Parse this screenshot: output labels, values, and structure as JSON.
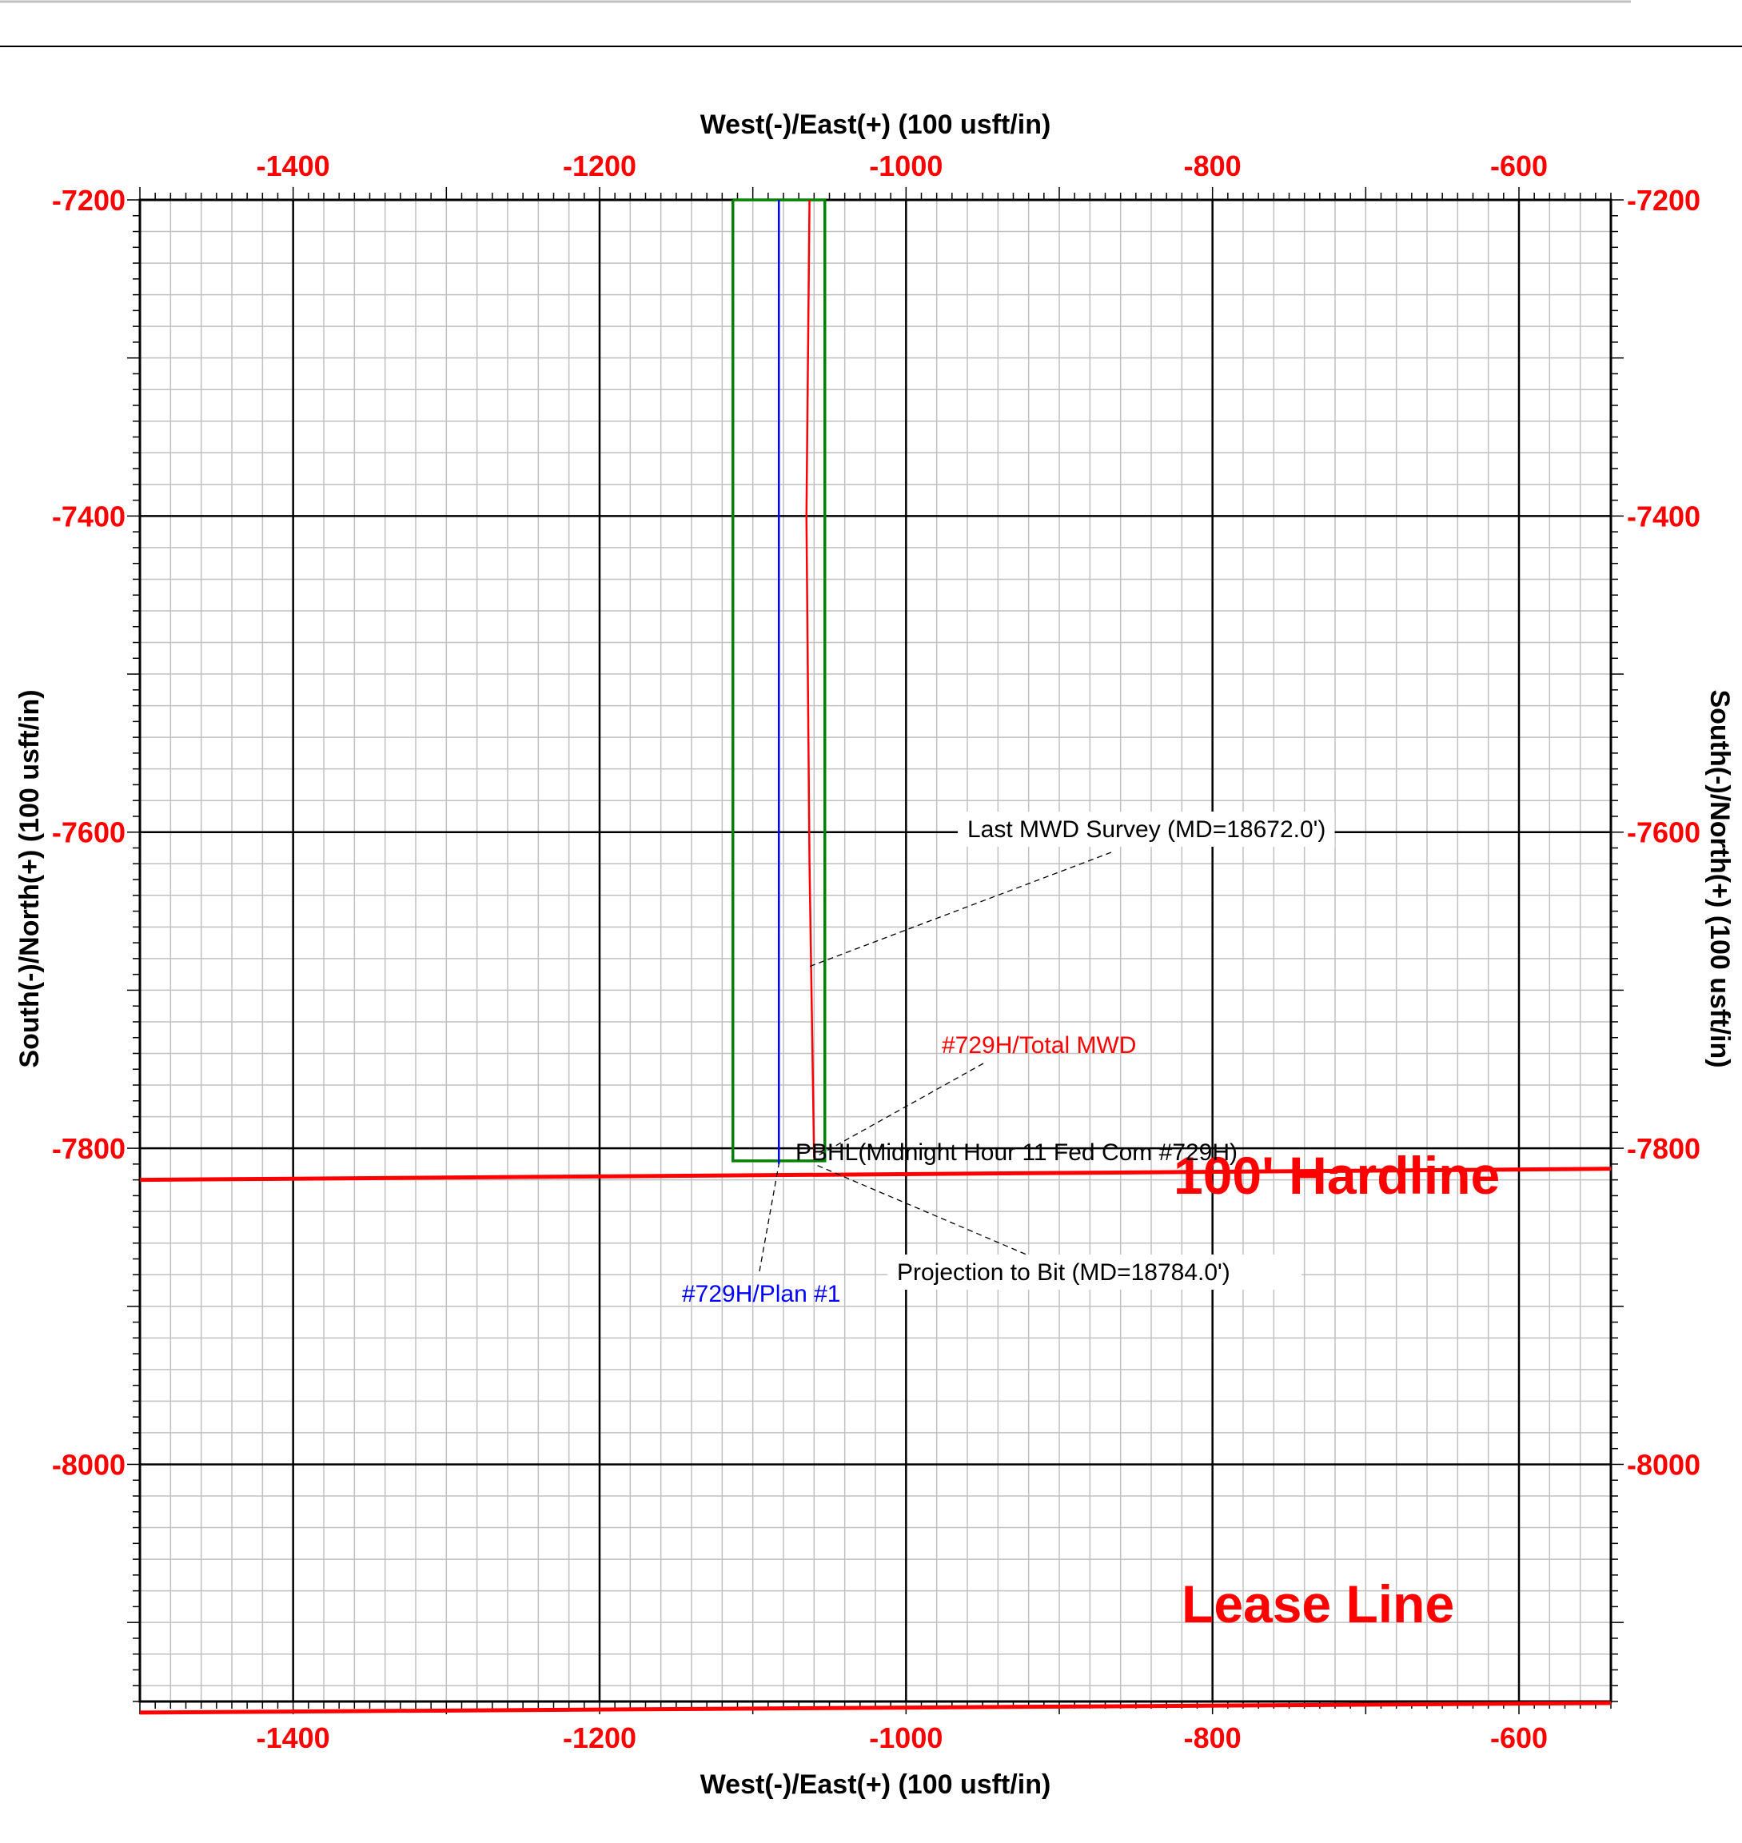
{
  "chart_data": {
    "type": "line",
    "x_axis_title": "West(-)/East(+) (100 usft/in)",
    "y_axis_title": "South(-)/North(+) (100 usft/in)",
    "xlim": [
      -1500,
      -540
    ],
    "ylim": [
      -8150,
      -7200
    ],
    "x_ticks": [
      -1400,
      -1200,
      -1000,
      -800,
      -600
    ],
    "y_ticks": [
      -7200,
      -7400,
      -7600,
      -7800,
      -8000
    ],
    "grid": true,
    "series": [
      {
        "name": "#729H/Plan #1",
        "color": "#0000ff",
        "x": [
          -1083,
          -1083
        ],
        "y": [
          -7200,
          -7810
        ]
      },
      {
        "name": "#729H/Total MWD",
        "color": "#ff0000",
        "x": [
          -1063,
          -1065,
          -1063,
          -1060
        ],
        "y": [
          -7200,
          -7400,
          -7620,
          -7806
        ]
      }
    ],
    "polygons": [
      {
        "label": "PBHL(Midnight Hour 11 Fed Com #729H)",
        "color": "#008000",
        "x": [
          -1113,
          -1113,
          -1053,
          -1053,
          -1113
        ],
        "y": [
          -7200,
          -7808,
          -7808,
          -7200,
          -7200
        ]
      }
    ],
    "boundary_lines": [
      {
        "label": "100' Hardline",
        "color": "#ff0000",
        "x": [
          -1500,
          -540
        ],
        "y": [
          -7820,
          -7813
        ]
      },
      {
        "label": "Lease Line",
        "color": "#ff0000",
        "x": [
          -1500,
          -540
        ],
        "y": [
          -8157,
          -8151
        ]
      }
    ],
    "annotations": [
      {
        "text": "Last MWD Survey (MD=18672.0')",
        "color": "#000000",
        "point": [
          -1063,
          -7685
        ]
      },
      {
        "text": "#729H/Total MWD",
        "color": "#ff0000",
        "point": [
          -1060,
          -7806
        ]
      },
      {
        "text": "PBHL(Midnight Hour 11 Fed Com #729H)",
        "color": "#000000",
        "point": [
          -1113,
          -7808
        ]
      },
      {
        "text": "Projection to Bit  (MD=18784.0')",
        "color": "#000000",
        "point": [
          -1060,
          -7810
        ]
      },
      {
        "text": "#729H/Plan  #1",
        "color": "#0000ff",
        "point": [
          -1083,
          -7810
        ]
      }
    ]
  }
}
